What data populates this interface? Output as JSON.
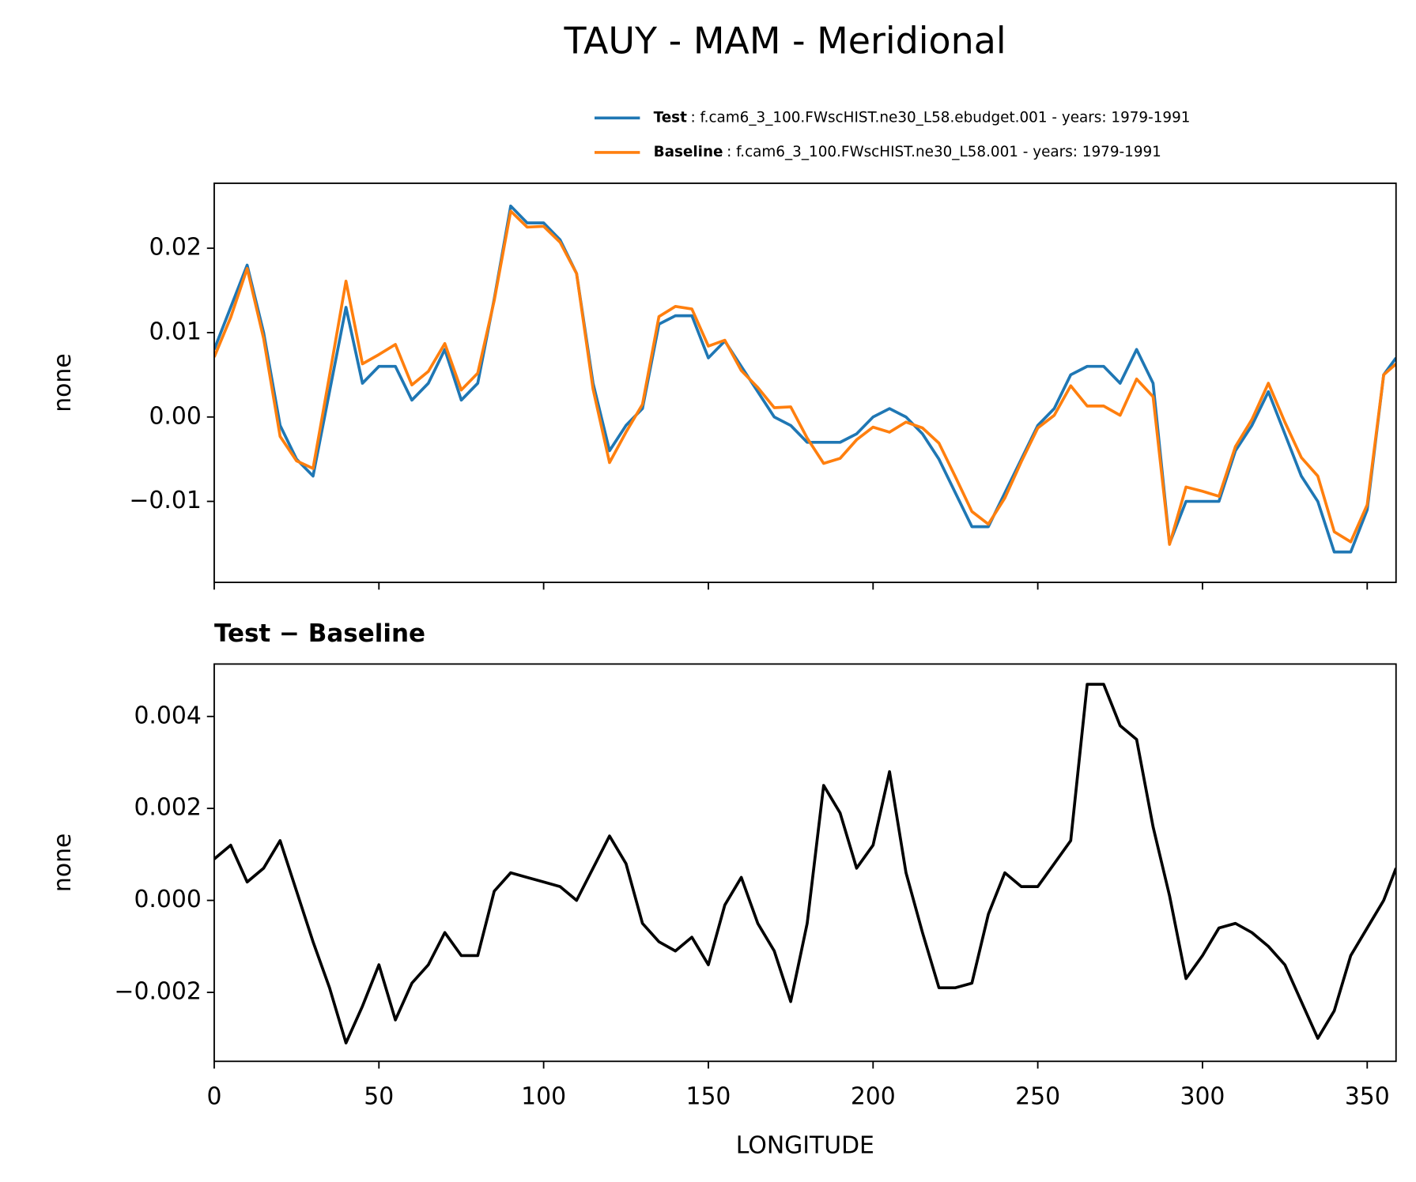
{
  "chart_data": [
    {
      "type": "line",
      "title": "TAUY - MAM - Meridional",
      "ylabel": "none",
      "x": [
        0,
        5,
        10,
        15,
        20,
        25,
        30,
        35,
        40,
        45,
        50,
        55,
        60,
        65,
        70,
        75,
        80,
        85,
        90,
        95,
        100,
        105,
        110,
        115,
        120,
        125,
        130,
        135,
        140,
        145,
        150,
        155,
        160,
        165,
        170,
        175,
        180,
        185,
        190,
        195,
        200,
        205,
        210,
        215,
        220,
        225,
        230,
        235,
        240,
        245,
        250,
        255,
        260,
        265,
        270,
        275,
        280,
        285,
        290,
        295,
        300,
        305,
        310,
        315,
        320,
        325,
        330,
        335,
        340,
        345,
        350,
        355,
        358.75
      ],
      "series": [
        {
          "name": "Test",
          "description": ": f.cam6_3_100.FWscHIST.ne30_L58.ebudget.001 - years: 1979-1991",
          "color": "#1f77b4",
          "values": [
            0.008,
            0.013,
            0.018,
            0.01,
            -0.001,
            -0.005,
            -0.007,
            0.003,
            0.013,
            0.004,
            0.006,
            0.006,
            0.002,
            0.004,
            0.008,
            0.002,
            0.004,
            0.014,
            0.025,
            0.023,
            0.023,
            0.021,
            0.017,
            0.004,
            -0.004,
            -0.001,
            0.001,
            0.011,
            0.012,
            0.012,
            0.007,
            0.009,
            0.006,
            0.003,
            0.0,
            -0.001,
            -0.003,
            -0.003,
            -0.003,
            -0.002,
            0.0,
            0.001,
            0.0,
            -0.002,
            -0.005,
            -0.009,
            -0.013,
            -0.013,
            -0.009,
            -0.005,
            -0.001,
            0.001,
            0.005,
            0.006,
            0.006,
            0.004,
            0.008,
            0.004,
            -0.015,
            -0.01,
            -0.01,
            -0.01,
            -0.004,
            -0.001,
            0.003,
            -0.002,
            -0.007,
            -0.01,
            -0.016,
            -0.016,
            -0.011,
            0.005,
            0.007
          ]
        },
        {
          "name": "Baseline",
          "description": ": f.cam6_3_100.FWscHIST.ne30_L58.001 - years: 1979-1991",
          "color": "#ff7f0e",
          "values": [
            0.0071,
            0.0118,
            0.0176,
            0.0093,
            -0.0023,
            -0.0052,
            -0.0061,
            0.0049,
            0.0161,
            0.0063,
            0.0074,
            0.0086,
            0.0038,
            0.0054,
            0.0087,
            0.0032,
            0.0052,
            0.0138,
            0.0244,
            0.0225,
            0.0226,
            0.0207,
            0.017,
            0.0033,
            -0.0054,
            -0.0018,
            0.0015,
            0.0119,
            0.0131,
            0.0128,
            0.0084,
            0.0091,
            0.0055,
            0.0035,
            0.0011,
            0.0012,
            -0.0025,
            -0.0055,
            -0.0049,
            -0.0027,
            -0.0012,
            -0.0018,
            -0.0006,
            -0.0013,
            -0.0031,
            -0.0071,
            -0.0112,
            -0.0127,
            -0.0096,
            -0.0053,
            -0.0013,
            0.0002,
            0.0037,
            0.0013,
            0.0013,
            0.0002,
            0.0045,
            0.0024,
            -0.0151,
            -0.0083,
            -0.0088,
            -0.0094,
            -0.0035,
            -0.0003,
            0.004,
            -0.0006,
            -0.0048,
            -0.007,
            -0.0136,
            -0.0148,
            -0.0104,
            0.005,
            0.0063
          ]
        }
      ],
      "xlim": [
        0,
        358.75
      ],
      "xticks": [
        0,
        50,
        100,
        150,
        200,
        250,
        300,
        350
      ],
      "ylim": [
        -0.0196,
        0.0277
      ],
      "yticks": [
        {
          "value": -0.01,
          "label": "−0.01"
        },
        {
          "value": 0,
          "label": "0.00"
        },
        0.01,
        0.02
      ]
    },
    {
      "type": "line",
      "title": "Test − Baseline",
      "ylabel": "none",
      "xlabel": "LONGITUDE",
      "x": [
        0,
        5,
        10,
        15,
        20,
        25,
        30,
        35,
        40,
        45,
        50,
        55,
        60,
        65,
        70,
        75,
        80,
        85,
        90,
        95,
        100,
        105,
        110,
        115,
        120,
        125,
        130,
        135,
        140,
        145,
        150,
        155,
        160,
        165,
        170,
        175,
        180,
        185,
        190,
        195,
        200,
        205,
        210,
        215,
        220,
        225,
        230,
        235,
        240,
        245,
        250,
        255,
        260,
        265,
        270,
        275,
        280,
        285,
        290,
        295,
        300,
        305,
        310,
        315,
        320,
        325,
        330,
        335,
        340,
        345,
        350,
        355,
        358.75
      ],
      "series": [
        {
          "color": "#000000",
          "values": [
            0.0009,
            0.0012,
            0.0004,
            0.0007,
            0.0013,
            0.0002,
            -0.0009,
            -0.0019,
            -0.0031,
            -0.0023,
            -0.0014,
            -0.0026,
            -0.0018,
            -0.0014,
            -0.0007,
            -0.0012,
            -0.0012,
            0.0002,
            0.0006,
            0.0005,
            0.0004,
            0.0003,
            0.0,
            0.0007,
            0.0014,
            0.0008,
            -0.0005,
            -0.0009,
            -0.0011,
            -0.0008,
            -0.0014,
            -0.0001,
            0.0005,
            -0.0005,
            -0.0011,
            -0.0022,
            -0.0005,
            0.0025,
            0.0019,
            0.0007,
            0.0012,
            0.0028,
            0.0006,
            -0.0007,
            -0.0019,
            -0.0019,
            -0.0018,
            -0.0003,
            0.0006,
            0.0003,
            0.0003,
            0.0008,
            0.0013,
            0.0047,
            0.0047,
            0.0038,
            0.0035,
            0.0016,
            0.0001,
            -0.0017,
            -0.0012,
            -0.0006,
            -0.0005,
            -0.0007,
            -0.001,
            -0.0014,
            -0.0022,
            -0.003,
            -0.0024,
            -0.0012,
            -0.0006,
            0.0,
            0.0007
          ]
        }
      ],
      "xlim": [
        0,
        358.75
      ],
      "xticks": [
        0,
        50,
        100,
        150,
        200,
        250,
        300,
        350
      ],
      "ylim": [
        -0.0035,
        0.00514
      ],
      "yticks": [
        {
          "value": -0.002,
          "label": "−0.002"
        },
        {
          "value": 0,
          "label": "0.000"
        },
        0.002,
        0.004
      ]
    }
  ]
}
